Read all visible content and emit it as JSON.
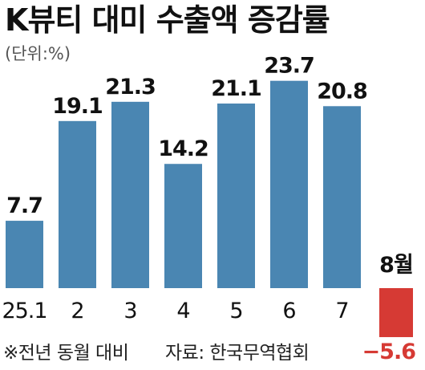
{
  "chart_data": {
    "type": "bar",
    "title": "K뷰티 대미 수출액 증감률",
    "unit_label": "(단위:%)",
    "categories": [
      "25.1",
      "2",
      "3",
      "4",
      "5",
      "6",
      "7",
      "8월"
    ],
    "values": [
      7.7,
      19.1,
      21.3,
      14.2,
      21.1,
      23.7,
      20.8,
      -5.6
    ],
    "value_labels": [
      "7.7",
      "19.1",
      "21.3",
      "14.2",
      "21.1",
      "23.7",
      "20.8",
      "−5.6"
    ],
    "ylim": [
      -5.6,
      23.7
    ],
    "grid": false,
    "legend": "none",
    "colors": {
      "positive": "#4a86b2",
      "negative": "#d63a34",
      "text": "#111111"
    }
  },
  "notes": {
    "footnote": "※전년 동월 대비",
    "source": "자료: 한국무역협회"
  }
}
